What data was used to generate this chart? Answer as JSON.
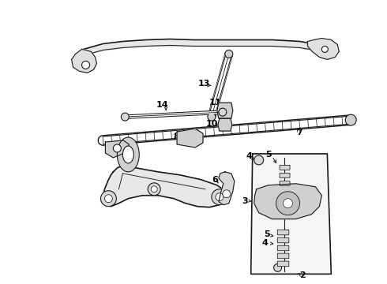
{
  "background_color": "#ffffff",
  "line_color": "#1a1a1a",
  "label_color": "#000000",
  "figsize": [
    4.9,
    3.6
  ],
  "dpi": 100,
  "xlim": [
    0,
    490
  ],
  "ylim": [
    0,
    360
  ]
}
